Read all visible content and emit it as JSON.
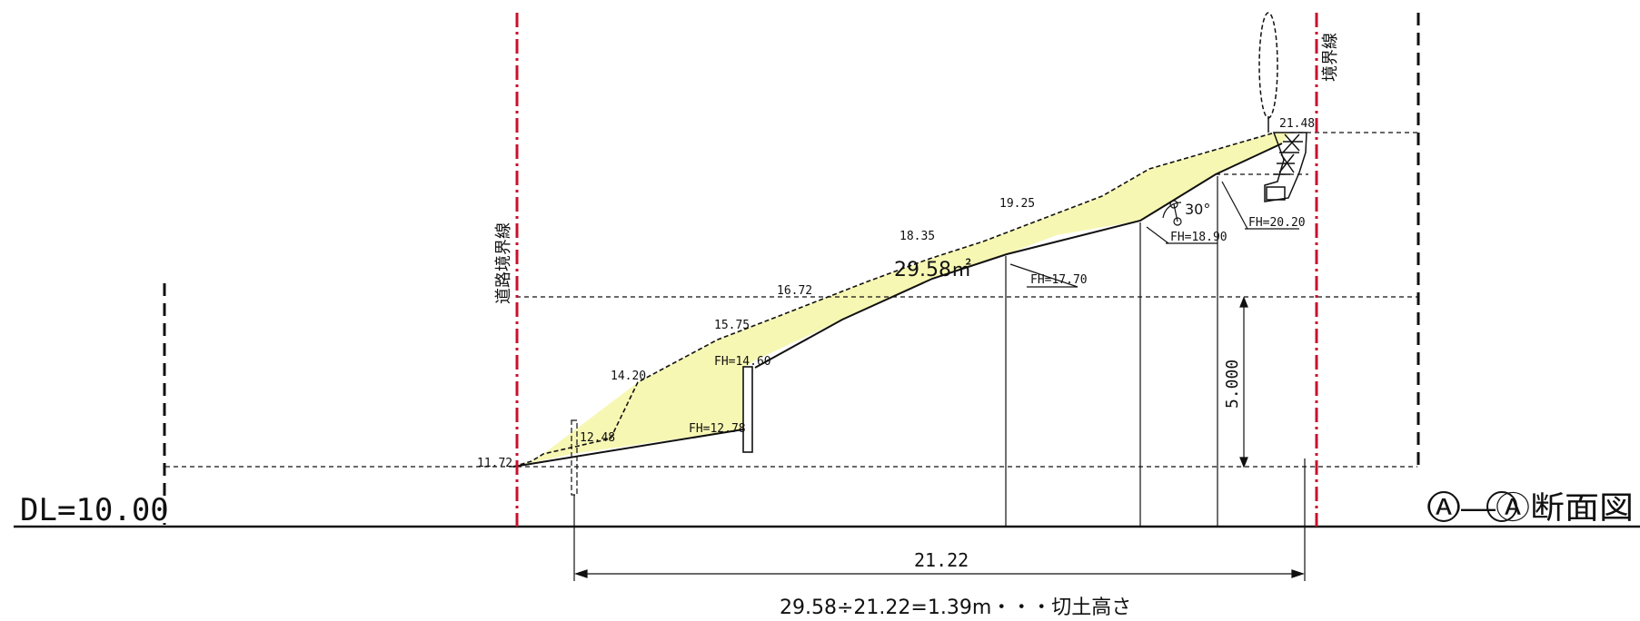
{
  "title": "Ⓐ―Ⓐ断面図",
  "datum_label": "DL=10.00",
  "road_boundary_label": "道路境界線",
  "boundary_label": "境界線",
  "area_label": "29.58㎡",
  "angle_label": "30°",
  "height_dim_label": "5.000",
  "width_dim_label": "21.22",
  "formula_label": "29.58÷21.22=1.39m・・・切土高さ",
  "existing_ground_levels": [
    {
      "label": "11.72"
    },
    {
      "label": "12.48"
    },
    {
      "label": "14.20"
    },
    {
      "label": "15.75"
    },
    {
      "label": "16.72"
    },
    {
      "label": "18.35"
    },
    {
      "label": "19.25"
    },
    {
      "label": "21.48"
    }
  ],
  "finished_levels": [
    {
      "label": "FH=12.78"
    },
    {
      "label": "FH=14.60"
    },
    {
      "label": "FH=17.70"
    },
    {
      "label": "FH=18.90"
    },
    {
      "label": "FH=20.20"
    }
  ],
  "colors": {
    "cut_fill": "#f7f7b4",
    "boundary_line": "#c8102e",
    "line": "#111111"
  }
}
